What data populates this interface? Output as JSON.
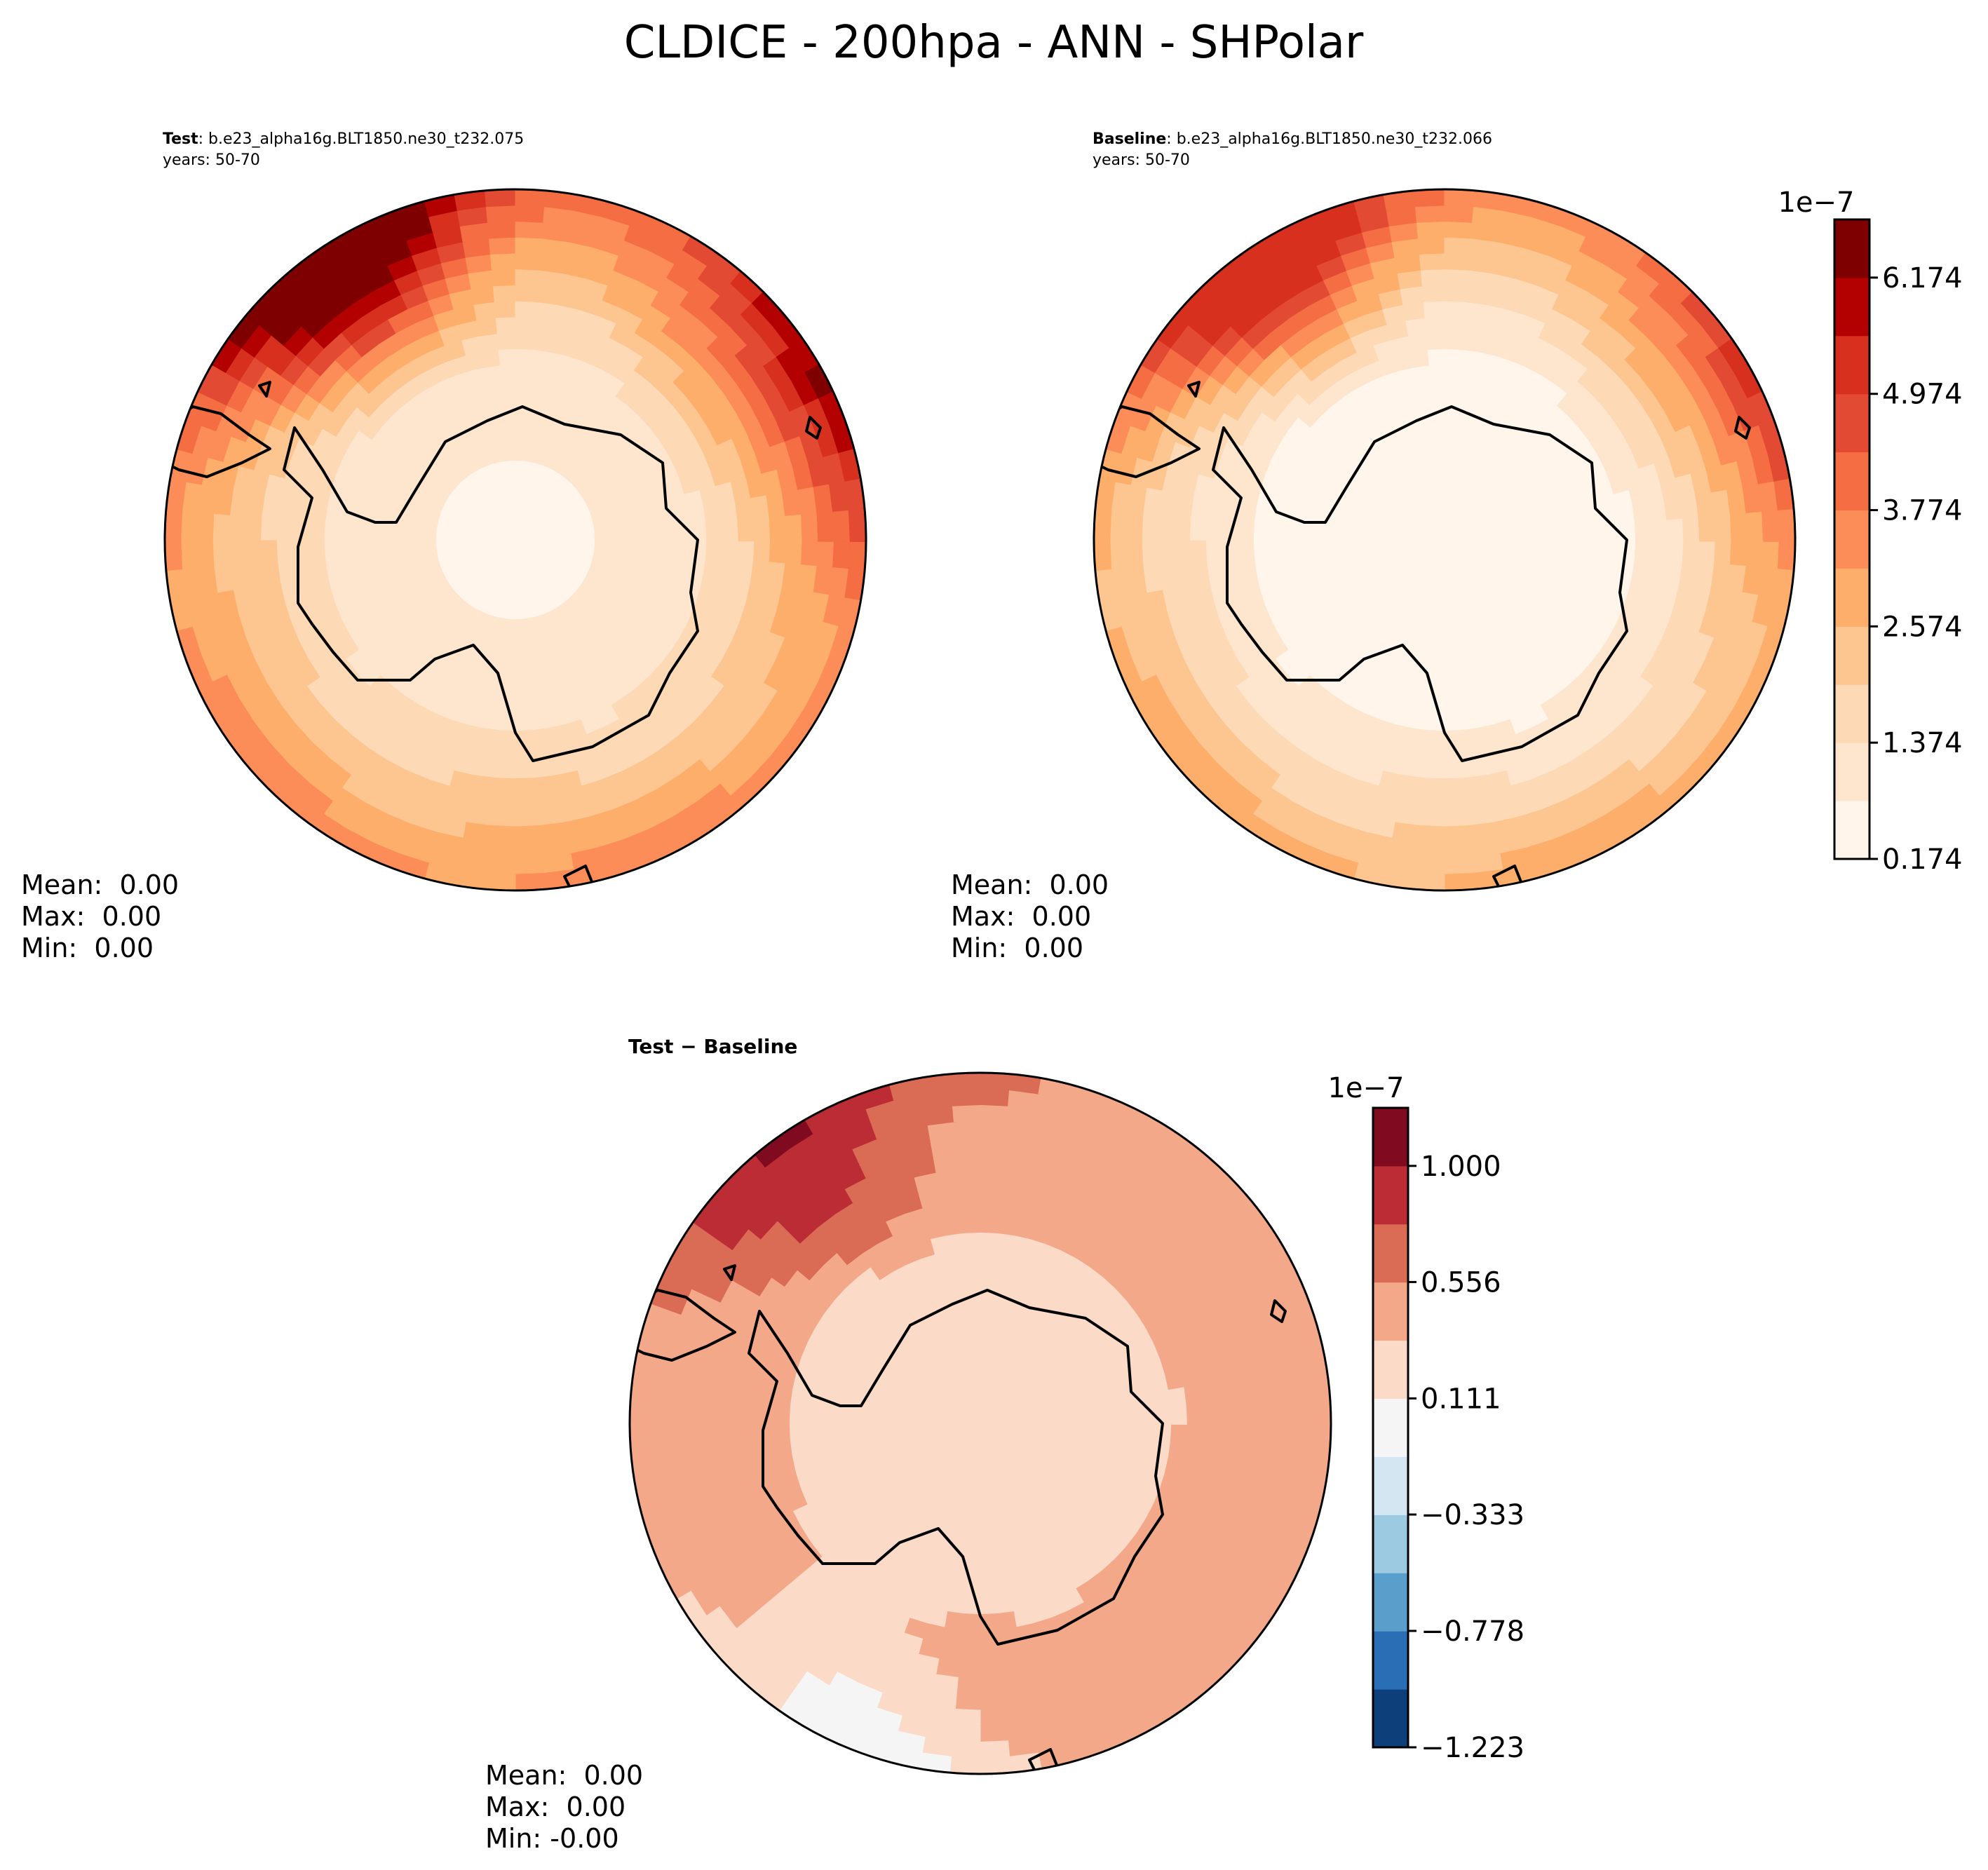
{
  "figure": {
    "title": "CLDICE - 200hpa - ANN - SHPolar"
  },
  "chart_data": [
    {
      "type": "heatmap",
      "projection": "south-polar-stereographic",
      "title_bold": "Test",
      "title_rest": ": b.e23_alpha16g.BLT1850.ne30_t232.075",
      "subtitle": "years: 50-70",
      "stats": {
        "mean": "Mean:  0.00",
        "max": "Max:  0.00",
        "min": "Min:  0.00"
      },
      "colormap": "sequential-reds",
      "pattern": {
        "pole_level": 0,
        "plateau_level": 1,
        "outer_level": 2,
        "edge_level": 5,
        "hotspots": [
          {
            "label": "south-atlantic",
            "strength": 10,
            "level_max": 10
          },
          {
            "label": "south-indian",
            "strength": 5,
            "level_max": 6
          }
        ]
      }
    },
    {
      "type": "heatmap",
      "projection": "south-polar-stereographic",
      "title_bold": "Baseline",
      "title_rest": ": b.e23_alpha16g.BLT1850.ne30_t232.066",
      "subtitle": "years: 50-70",
      "stats": {
        "mean": "Mean:  0.00",
        "max": "Max:  0.00",
        "min": "Min:  0.00"
      },
      "colormap": "sequential-reds",
      "colorbar": {
        "exponent_label": "1e−7",
        "tick_labels": [
          "0.174",
          "1.374",
          "2.574",
          "3.774",
          "4.974",
          "6.174"
        ],
        "tick_values": [
          0.174,
          1.374,
          2.574,
          3.774,
          4.974,
          6.174
        ],
        "vmin": 0.174,
        "vmax": 6.774,
        "levels": 11,
        "colors": [
          "#fff5eb",
          "#fee6ce",
          "#fdd9b5",
          "#fdc590",
          "#fdae6b",
          "#fc8d59",
          "#f46d43",
          "#e34a33",
          "#d7301f",
          "#b30000",
          "#7f0000"
        ]
      },
      "pattern": {
        "pole_level": 0,
        "plateau_level": 0,
        "outer_level": 1,
        "edge_level": 4,
        "hotspots": [
          {
            "label": "south-atlantic",
            "strength": 8,
            "level_max": 8
          },
          {
            "label": "south-indian",
            "strength": 4,
            "level_max": 5
          }
        ]
      }
    },
    {
      "type": "heatmap",
      "projection": "south-polar-stereographic",
      "title_bold": "Test − Baseline",
      "title_rest": "",
      "subtitle": "",
      "stats": {
        "mean": "Mean:  0.00",
        "max": "Max:  0.00",
        "min": "Min: -0.00"
      },
      "colormap": "diverging-red-blue",
      "colorbar": {
        "exponent_label": "1e−7",
        "tick_labels": [
          "−1.223",
          "−0.778",
          "−0.333",
          "0.111",
          "0.556",
          "1.000"
        ],
        "tick_values": [
          -1.223,
          -0.778,
          -0.333,
          0.111,
          0.556,
          1.0
        ],
        "vmin": -1.223,
        "vmax": 1.222,
        "levels": 11,
        "colors": [
          "#0d3f7a",
          "#2a6fb5",
          "#5a9ecb",
          "#9ccae0",
          "#d4e6f2",
          "#f5f5f5",
          "#fbdac7",
          "#f3a889",
          "#da6b55",
          "#bb2c34",
          "#800a1f"
        ]
      },
      "pattern": {
        "pole_level": 6,
        "plateau_level": 6,
        "outer_level": 7,
        "edge_level": 7,
        "hotspots": [
          {
            "label": "south-atlantic",
            "strength": 3,
            "level_max": 10
          },
          {
            "label": "south-pacific-negative",
            "strength": -2,
            "level_max": 3
          }
        ]
      }
    }
  ]
}
